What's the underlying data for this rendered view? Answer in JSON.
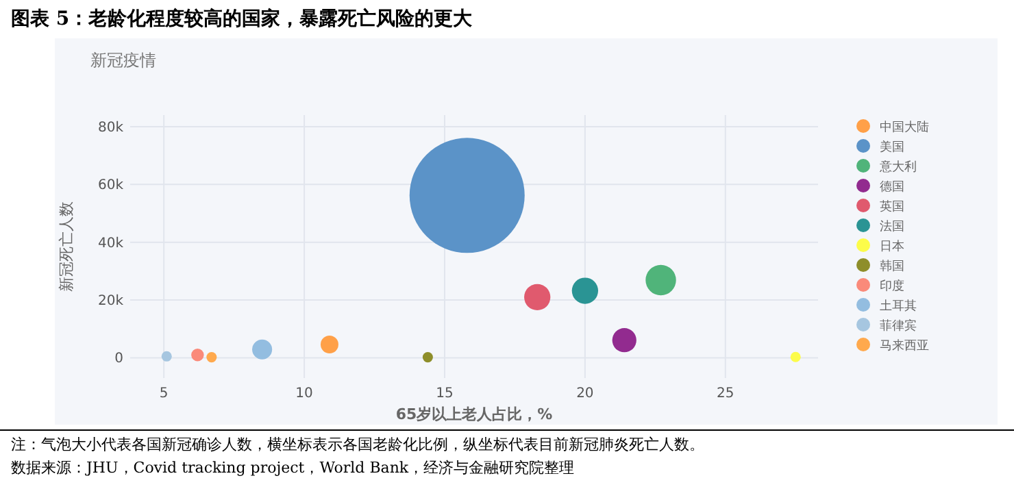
{
  "chart_data": {
    "type": "bubble",
    "title": "图表 5：老龄化程度较高的国家，暴露死亡风险的更大",
    "subtitle": "新冠疫情",
    "xlabel": "65岁以上老人占比，%",
    "ylabel": "新冠死亡人数",
    "annotations": [
      "注：气泡大小代表各国新冠确诊人数，横坐标表示各国老龄化比例，纵坐标代表目前新冠肺炎死亡人数。",
      "数据来源：JHU，Covid tracking project，World Bank，经济与金融研究院整理"
    ],
    "xlim": [
      3.8,
      28.3
    ],
    "xticks": [
      5,
      10,
      15,
      20,
      25
    ],
    "ylim": [
      -7000,
      84000
    ],
    "yticks": [
      {
        "value": 0,
        "label": "0"
      },
      {
        "value": 20000,
        "label": "20k"
      },
      {
        "value": 40000,
        "label": "40k"
      },
      {
        "value": 60000,
        "label": "60k"
      },
      {
        "value": 80000,
        "label": "80k"
      }
    ],
    "grid": true,
    "legend": "right",
    "marker": "circle",
    "series": [
      {
        "name": "中国大陆",
        "color": "#ffa048",
        "x": [
          10.9
        ],
        "values": [
          4600
        ],
        "sizes": [
          0.024
        ]
      },
      {
        "name": "美国",
        "color": "#5b93c8",
        "x": [
          15.8
        ],
        "values": [
          56200
        ],
        "sizes": [
          1
        ]
      },
      {
        "name": "意大利",
        "color": "#50b47a",
        "x": [
          22.7
        ],
        "values": [
          26900
        ],
        "sizes": [
          0.07
        ]
      },
      {
        "name": "德国",
        "color": "#922b8f",
        "x": [
          21.4
        ],
        "values": [
          6100
        ],
        "sizes": [
          0.044
        ]
      },
      {
        "name": "英国",
        "color": "#e05a6e",
        "x": [
          18.3
        ],
        "values": [
          21000
        ],
        "sizes": [
          0.052
        ]
      },
      {
        "name": "法国",
        "color": "#2a9494",
        "x": [
          20.0
        ],
        "values": [
          23200
        ],
        "sizes": [
          0.052
        ]
      },
      {
        "name": "日本",
        "color": "#fcfc4a",
        "x": [
          27.5
        ],
        "values": [
          300
        ],
        "sizes": [
          0.008
        ]
      },
      {
        "name": "韩国",
        "color": "#8e8e2a",
        "x": [
          14.4
        ],
        "values": [
          200
        ],
        "sizes": [
          0.008
        ]
      },
      {
        "name": "印度",
        "color": "#fa8a7a",
        "x": [
          6.2
        ],
        "values": [
          1000
        ],
        "sizes": [
          0.012
        ]
      },
      {
        "name": "土耳其",
        "color": "#93bde0",
        "x": [
          8.5
        ],
        "values": [
          2900
        ],
        "sizes": [
          0.03
        ]
      },
      {
        "name": "菲律宾",
        "color": "#a6c6e0",
        "x": [
          5.1
        ],
        "values": [
          500
        ],
        "sizes": [
          0.008
        ]
      },
      {
        "name": "马来西亚",
        "color": "#ffa94d",
        "x": [
          6.7
        ],
        "values": [
          200
        ],
        "sizes": [
          0.008
        ]
      }
    ]
  }
}
